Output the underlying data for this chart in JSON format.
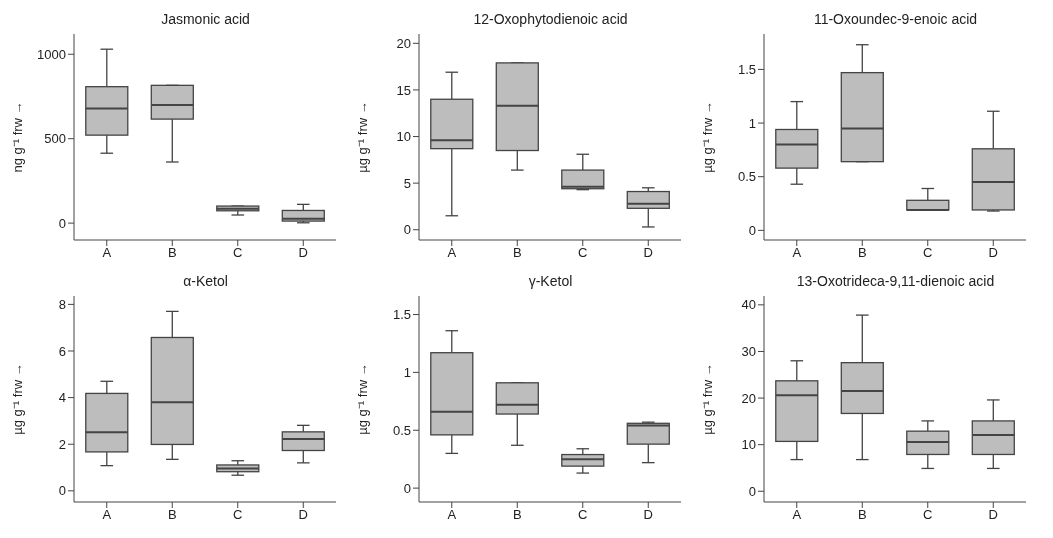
{
  "chart_data": [
    {
      "type": "box",
      "title": "Jasmonic acid",
      "ylabel": "ng g⁻¹ frw →",
      "categories": [
        "A",
        "B",
        "C",
        "D"
      ],
      "color": "#bdbdbd",
      "ylim": [
        -100,
        1120
      ],
      "yticks": [
        0,
        500,
        1000
      ],
      "boxes": [
        {
          "low": 414,
          "q1": 521,
          "median": 679,
          "q3": 808,
          "high": 1030
        },
        {
          "low": 362,
          "q1": 616,
          "median": 699,
          "q3": 816,
          "high": 816
        },
        {
          "low": 48,
          "q1": 73,
          "median": 85,
          "q3": 101,
          "high": 101
        },
        {
          "low": 2,
          "q1": 12,
          "median": 26,
          "q3": 75,
          "high": 111
        }
      ]
    },
    {
      "type": "box",
      "title": "12-Oxophytodienoic acid",
      "ylabel": "µg g⁻¹ frw →",
      "categories": [
        "A",
        "B",
        "C",
        "D"
      ],
      "color": "#bdbdbd",
      "ylim": [
        -1.1,
        21
      ],
      "yticks": [
        0,
        5,
        10,
        15,
        20
      ],
      "boxes": [
        {
          "low": 1.5,
          "q1": 8.7,
          "median": 9.6,
          "q3": 14.0,
          "high": 16.9
        },
        {
          "low": 6.4,
          "q1": 8.5,
          "median": 13.3,
          "q3": 17.9,
          "high": 17.9
        },
        {
          "low": 4.3,
          "q1": 4.4,
          "median": 4.6,
          "q3": 6.4,
          "high": 8.1
        },
        {
          "low": 0.3,
          "q1": 2.3,
          "median": 2.8,
          "q3": 4.1,
          "high": 4.5
        }
      ]
    },
    {
      "type": "box",
      "title": "11-Oxoundec-9-enoic acid",
      "ylabel": "µg g⁻¹ frw →",
      "categories": [
        "A",
        "B",
        "C",
        "D"
      ],
      "color": "#bdbdbd",
      "ylim": [
        -0.09,
        1.83
      ],
      "yticks": [
        0,
        0.5,
        1,
        1.5
      ],
      "boxes": [
        {
          "low": 0.43,
          "q1": 0.58,
          "median": 0.8,
          "q3": 0.94,
          "high": 1.2
        },
        {
          "low": 0.64,
          "q1": 0.64,
          "median": 0.95,
          "q3": 1.47,
          "high": 1.73
        },
        {
          "low": 0.19,
          "q1": 0.19,
          "median": 0.19,
          "q3": 0.28,
          "high": 0.39
        },
        {
          "low": 0.18,
          "q1": 0.19,
          "median": 0.45,
          "q3": 0.76,
          "high": 1.11
        }
      ]
    },
    {
      "type": "box",
      "title": "α-Ketol",
      "ylabel": "µg g⁻¹ frw →",
      "categories": [
        "A",
        "B",
        "C",
        "D"
      ],
      "color": "#bdbdbd",
      "ylim": [
        -0.48,
        8.36
      ],
      "yticks": [
        0,
        2,
        4,
        6,
        8
      ],
      "boxes": [
        {
          "low": 1.08,
          "q1": 1.67,
          "median": 2.51,
          "q3": 4.18,
          "high": 4.7
        },
        {
          "low": 1.35,
          "q1": 1.99,
          "median": 3.8,
          "q3": 6.58,
          "high": 7.7
        },
        {
          "low": 0.67,
          "q1": 0.82,
          "median": 0.96,
          "q3": 1.11,
          "high": 1.29
        },
        {
          "low": 1.2,
          "q1": 1.73,
          "median": 2.22,
          "q3": 2.53,
          "high": 2.81
        }
      ]
    },
    {
      "type": "box",
      "title": "γ-Ketol",
      "ylabel": "µg g⁻¹ frw →",
      "categories": [
        "A",
        "B",
        "C",
        "D"
      ],
      "color": "#bdbdbd",
      "ylim": [
        -0.12,
        1.66
      ],
      "yticks": [
        0,
        0.5,
        1,
        1.5
      ],
      "boxes": [
        {
          "low": 0.3,
          "q1": 0.46,
          "median": 0.66,
          "q3": 1.17,
          "high": 1.36
        },
        {
          "low": 0.37,
          "q1": 0.64,
          "median": 0.72,
          "q3": 0.91,
          "high": 0.91
        },
        {
          "low": 0.13,
          "q1": 0.19,
          "median": 0.25,
          "q3": 0.29,
          "high": 0.34
        },
        {
          "low": 0.22,
          "q1": 0.38,
          "median": 0.54,
          "q3": 0.56,
          "high": 0.57
        }
      ]
    },
    {
      "type": "box",
      "title": "13-Oxotrideca-9,11-dienoic acid",
      "ylabel": "µg g⁻¹ frw →",
      "categories": [
        "A",
        "B",
        "C",
        "D"
      ],
      "color": "#bdbdbd",
      "ylim": [
        -2.3,
        41.9
      ],
      "yticks": [
        0,
        10,
        20,
        30,
        40
      ],
      "boxes": [
        {
          "low": 6.8,
          "q1": 10.7,
          "median": 20.6,
          "q3": 23.7,
          "high": 28.0
        },
        {
          "low": 6.8,
          "q1": 16.7,
          "median": 21.5,
          "q3": 27.6,
          "high": 37.8
        },
        {
          "low": 4.9,
          "q1": 7.9,
          "median": 10.6,
          "q3": 12.9,
          "high": 15.1
        },
        {
          "low": 4.9,
          "q1": 7.9,
          "median": 12.1,
          "q3": 15.1,
          "high": 19.6
        }
      ]
    }
  ]
}
